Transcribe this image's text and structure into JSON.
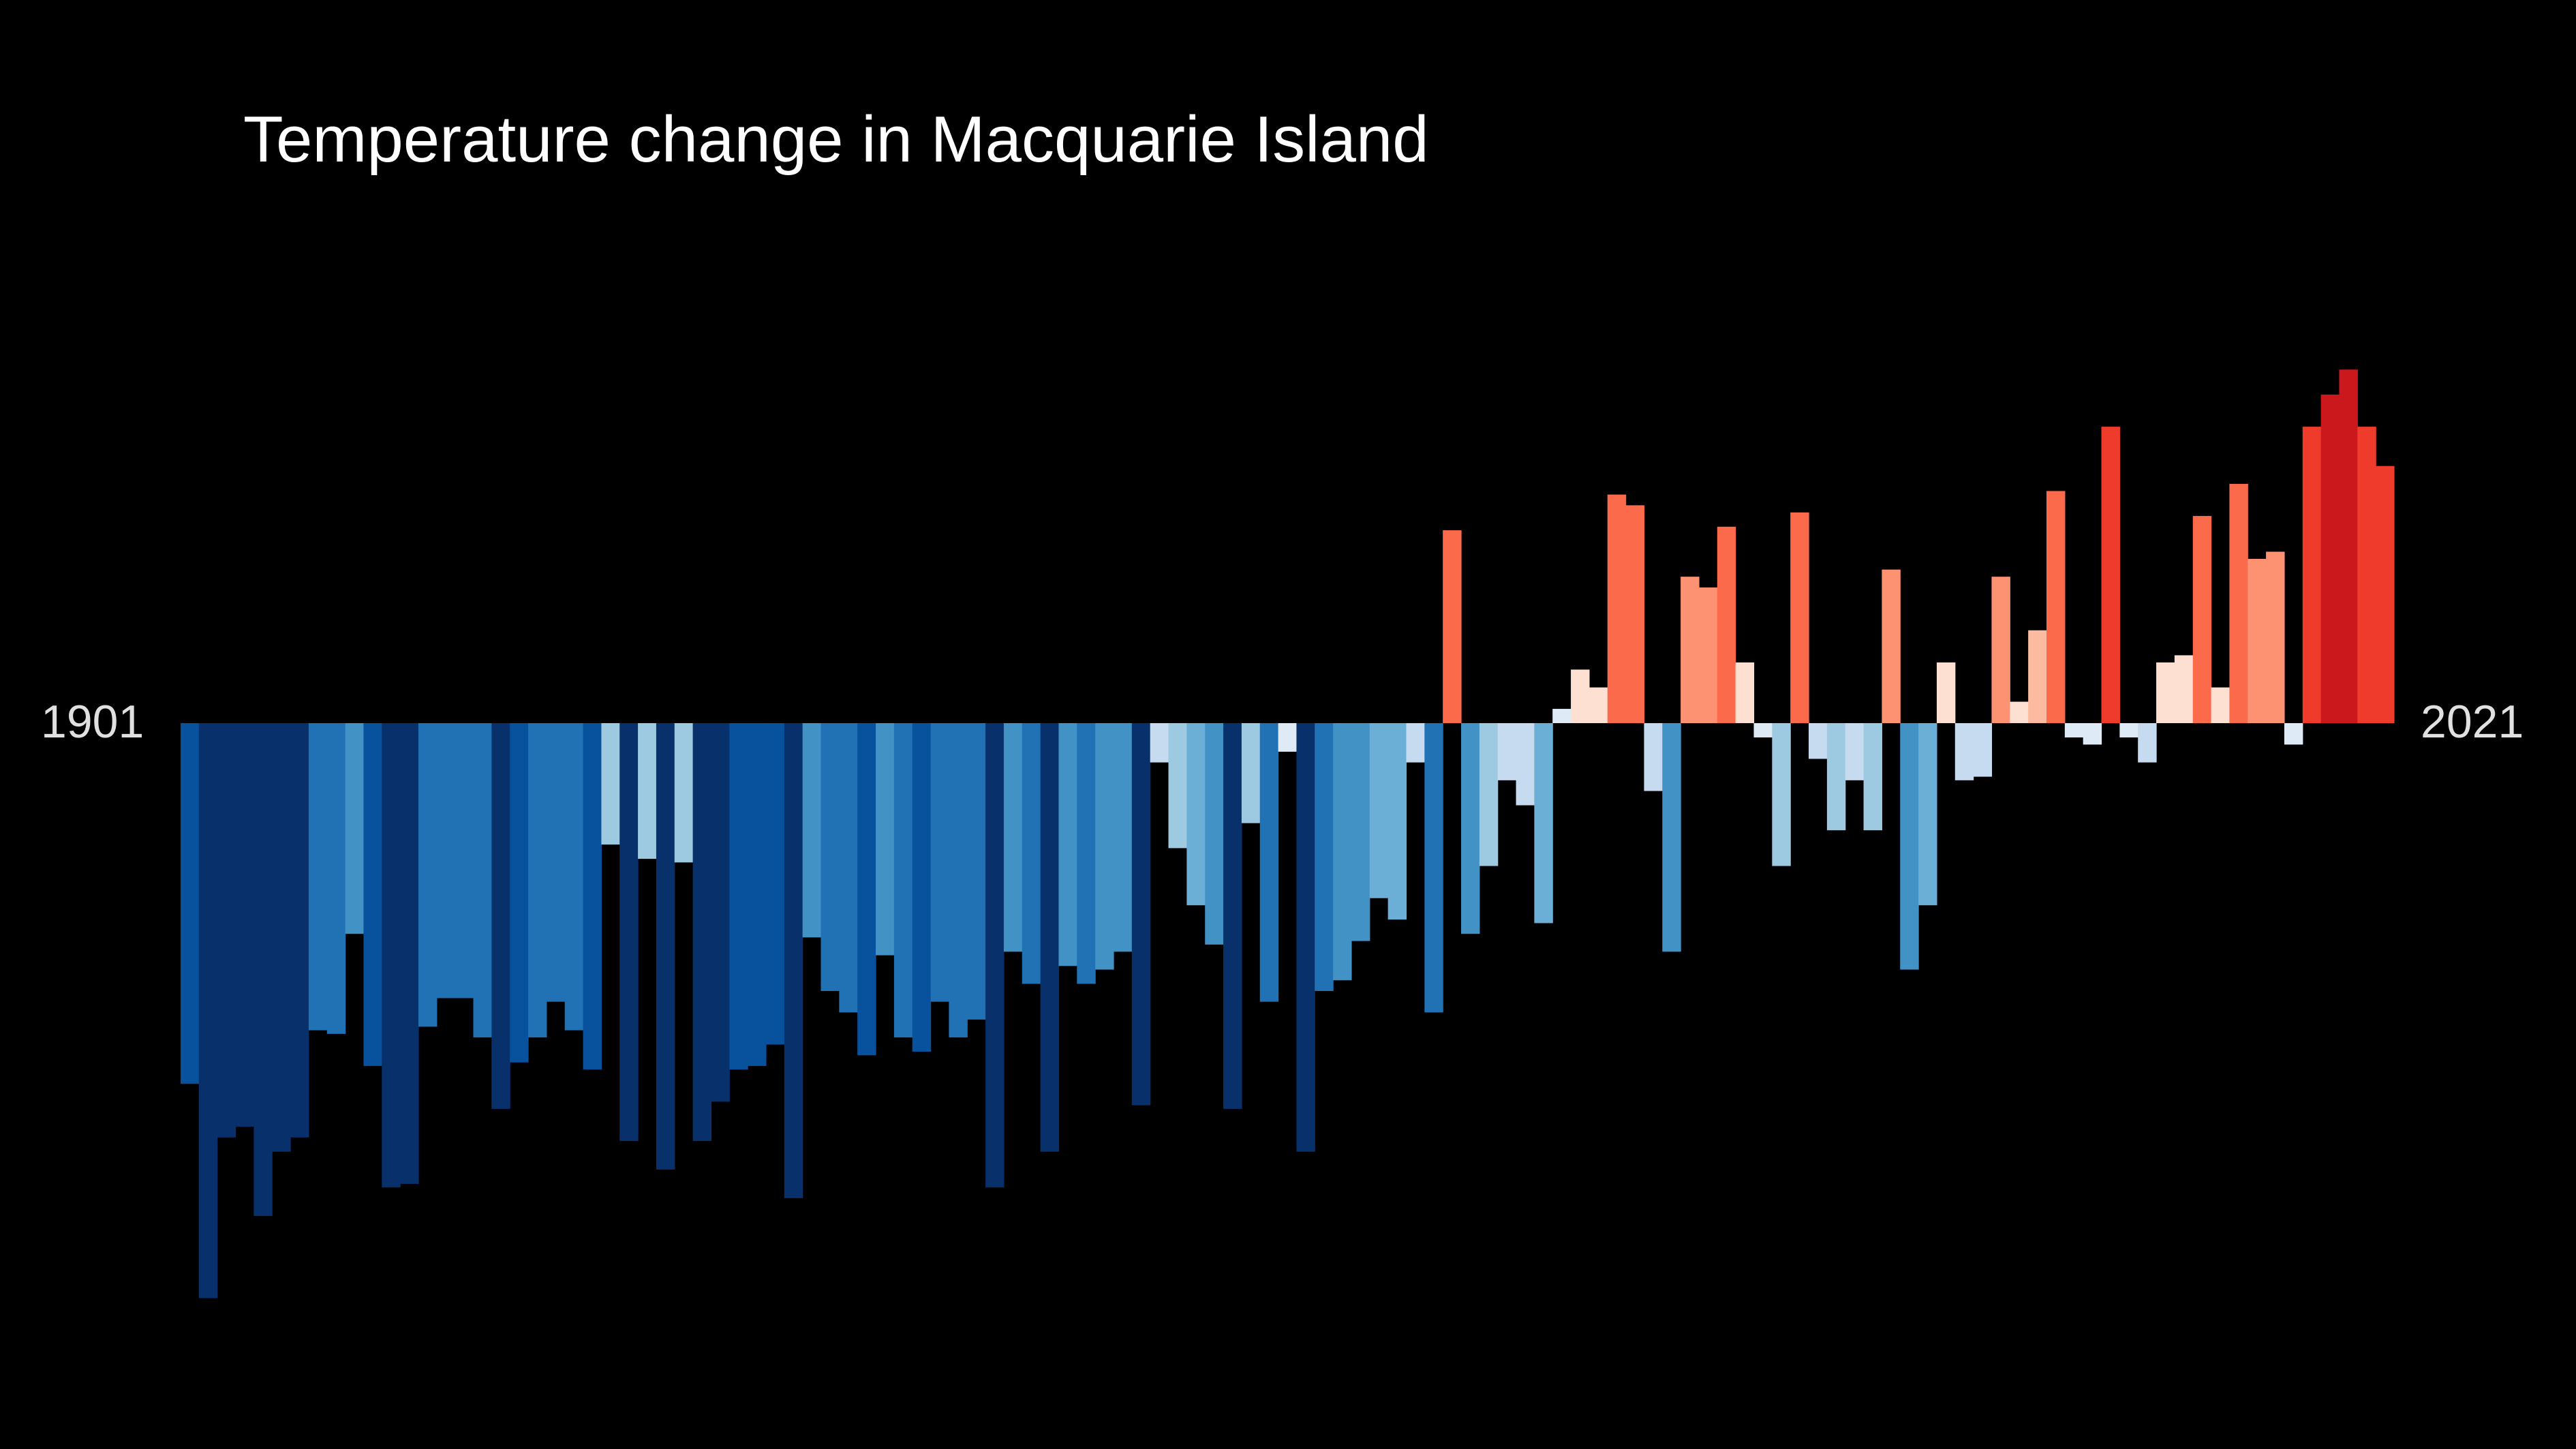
{
  "chart_data": {
    "type": "bar",
    "title": "Temperature change in Macquarie Island",
    "start_label": "1901",
    "end_label": "2021",
    "x": [
      1901,
      1902,
      1903,
      1904,
      1905,
      1906,
      1907,
      1908,
      1909,
      1910,
      1911,
      1912,
      1913,
      1914,
      1915,
      1916,
      1917,
      1918,
      1919,
      1920,
      1921,
      1922,
      1923,
      1924,
      1925,
      1926,
      1927,
      1928,
      1929,
      1930,
      1931,
      1932,
      1933,
      1934,
      1935,
      1936,
      1937,
      1938,
      1939,
      1940,
      1941,
      1942,
      1943,
      1944,
      1945,
      1946,
      1947,
      1948,
      1949,
      1950,
      1951,
      1952,
      1953,
      1954,
      1955,
      1956,
      1957,
      1958,
      1959,
      1960,
      1961,
      1962,
      1963,
      1964,
      1965,
      1966,
      1967,
      1968,
      1969,
      1970,
      1971,
      1972,
      1973,
      1974,
      1975,
      1976,
      1977,
      1978,
      1979,
      1980,
      1981,
      1982,
      1983,
      1984,
      1985,
      1986,
      1987,
      1988,
      1989,
      1990,
      1991,
      1992,
      1993,
      1994,
      1995,
      1996,
      1997,
      1998,
      1999,
      2000,
      2001,
      2002,
      2003,
      2004,
      2005,
      2006,
      2007,
      2008,
      2009,
      2010,
      2011,
      2012,
      2013,
      2014,
      2015,
      2016,
      2017,
      2018,
      2019,
      2020,
      2021
    ],
    "values": [
      -1.01,
      -1.61,
      -1.16,
      -1.13,
      -1.38,
      -1.2,
      -1.16,
      -0.86,
      -0.87,
      -0.59,
      -0.96,
      -1.3,
      -1.29,
      -0.85,
      -0.77,
      -0.77,
      -0.88,
      -1.08,
      -0.95,
      -0.88,
      -0.78,
      -0.86,
      -0.97,
      -0.34,
      -1.17,
      -0.38,
      -1.25,
      -0.39,
      -1.17,
      -1.06,
      -0.97,
      -0.96,
      -0.9,
      -1.33,
      -0.6,
      -0.75,
      -0.81,
      -0.93,
      -0.65,
      -0.88,
      -0.92,
      -0.78,
      -0.88,
      -0.83,
      -1.3,
      -0.64,
      -0.73,
      -1.2,
      -0.68,
      -0.73,
      -0.69,
      -0.64,
      -1.07,
      -0.11,
      -0.35,
      -0.51,
      -0.62,
      -1.08,
      -0.28,
      -0.78,
      -0.08,
      -1.2,
      -0.75,
      -0.72,
      -0.61,
      -0.49,
      -0.55,
      -0.11,
      -0.81,
      0.54,
      -0.59,
      -0.4,
      -0.16,
      -0.23,
      -0.56,
      0.04,
      0.15,
      0.1,
      0.64,
      0.61,
      -0.19,
      -0.64,
      0.41,
      0.38,
      0.55,
      0.17,
      -0.04,
      -0.4,
      0.59,
      -0.1,
      -0.3,
      -0.16,
      -0.3,
      0.43,
      -0.69,
      -0.51,
      0.17,
      -0.16,
      -0.15,
      0.41,
      0.06,
      0.26,
      0.65,
      -0.04,
      -0.06,
      0.83,
      -0.04,
      -0.11,
      0.17,
      0.19,
      0.58,
      0.1,
      0.67,
      0.46,
      0.48,
      -0.06,
      0.83,
      0.92,
      0.99,
      0.83,
      0.72
    ],
    "ylim": [
      -1.75,
      1.2
    ],
    "colors": {
      "background": "#000000",
      "palette_cold_to_warm": [
        "#08306b",
        "#08519c",
        "#2171b5",
        "#4292c6",
        "#6baed6",
        "#9ecae1",
        "#c6dbef",
        "#deebf7",
        "#fee0d2",
        "#fcbba1",
        "#fc9272",
        "#fb6a4a",
        "#ef3b2c",
        "#cb181d"
      ]
    }
  }
}
